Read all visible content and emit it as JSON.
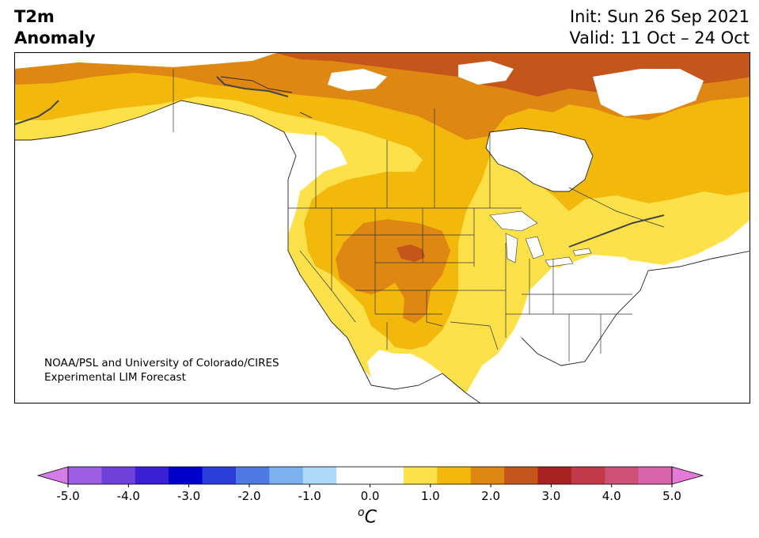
{
  "title": {
    "variable": "T2m",
    "subtitle": "Anomaly",
    "init": "Init: Sun 26 Sep 2021",
    "valid": "Valid: 11 Oct – 24 Oct"
  },
  "credit": {
    "line1": "NOAA/PSL and University of Colorado/CIRES",
    "line2": "Experimental LIM Forecast"
  },
  "colorbar": {
    "colors": [
      "#d47de8",
      "#9d5ee3",
      "#6e41db",
      "#3b1fd3",
      "#0000cd",
      "#2b3ed9",
      "#4f79e2",
      "#7bb1ef",
      "#acd9f8",
      "#ffffff",
      "#ffffff",
      "#fde14b",
      "#f2b90c",
      "#de8713",
      "#c4561c",
      "#a92222",
      "#c23a4a",
      "#cd5179",
      "#d763a8",
      "#e479d7"
    ],
    "ticks": [
      "-5.0",
      "-4.0",
      "-3.0",
      "-2.0",
      "-1.0",
      "0.0",
      "1.0",
      "2.0",
      "3.0",
      "4.0",
      "5.0"
    ],
    "unit_main": "C",
    "unit_sup": "o",
    "range": [
      -5.0,
      5.0
    ],
    "step": 0.5
  },
  "anomaly_levels": {
    "light_yellow": "0.5 to 1.0",
    "yellow": "1.0 to 1.5",
    "orange": "1.5 to 2.0",
    "dark_orange": "2.0 to 2.5"
  }
}
